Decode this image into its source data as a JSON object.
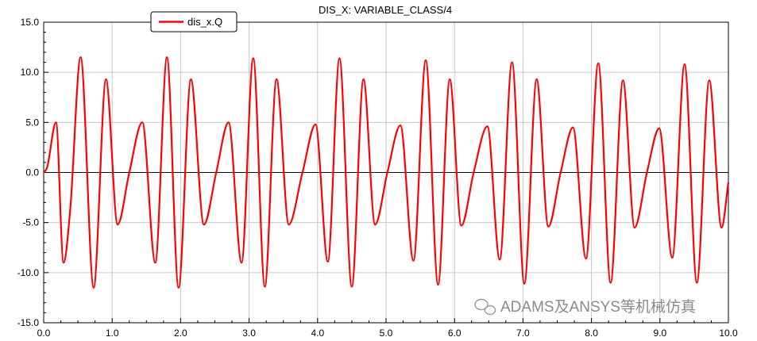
{
  "chart_data": {
    "type": "line",
    "title": "DIS_X: VARIABLE_CLASS/4",
    "xlabel": "",
    "ylabel": "",
    "xlim": [
      0.0,
      10.0
    ],
    "ylim": [
      -15.0,
      15.0
    ],
    "x_ticks": [
      "0.0",
      "1.0",
      "2.0",
      "3.0",
      "4.0",
      "5.0",
      "6.0",
      "7.0",
      "8.0",
      "9.0",
      "10.0"
    ],
    "y_ticks": [
      "15.0",
      "10.0",
      "5.0",
      "0.0",
      "-5.0",
      "-10.0",
      "-15.0"
    ],
    "grid": true,
    "legend_position": "top-left",
    "series": [
      {
        "name": "dis_x.Q",
        "color": "#ff0000",
        "x": [
          0.0,
          0.05,
          0.18,
          0.29,
          0.39,
          0.54,
          0.73,
          0.91,
          1.08,
          1.25,
          1.44,
          1.63,
          1.8,
          1.97,
          2.15,
          2.34,
          2.52,
          2.7,
          2.89,
          3.06,
          3.23,
          3.4,
          3.58,
          3.78,
          3.97,
          4.15,
          4.32,
          4.5,
          4.67,
          4.84,
          5.02,
          5.21,
          5.4,
          5.58,
          5.76,
          5.93,
          6.1,
          6.28,
          6.48,
          6.66,
          6.84,
          7.02,
          7.2,
          7.37,
          7.55,
          7.73,
          7.92,
          8.1,
          8.28,
          8.46,
          8.63,
          8.81,
          8.99,
          9.18,
          9.36,
          9.54,
          9.72,
          9.9,
          10.0
        ],
        "y": [
          0.0,
          0.5,
          5.0,
          -9.0,
          -3.5,
          11.5,
          -11.5,
          9.3,
          -5.2,
          0.0,
          5.0,
          -9.0,
          11.5,
          -11.5,
          9.3,
          -5.2,
          0.0,
          5.0,
          -9.0,
          11.4,
          -11.4,
          9.3,
          -5.2,
          0.0,
          4.8,
          -8.9,
          11.4,
          -11.4,
          9.3,
          -5.2,
          0.0,
          4.7,
          -8.8,
          11.2,
          -11.2,
          9.3,
          -5.3,
          0.0,
          4.6,
          -8.7,
          11.0,
          -11.1,
          9.3,
          -5.4,
          0.0,
          4.5,
          -8.6,
          10.9,
          -11.0,
          9.2,
          -5.5,
          0.0,
          4.4,
          -8.5,
          10.8,
          -11.0,
          9.2,
          -5.5,
          -1.0
        ]
      }
    ]
  },
  "watermark": {
    "text": "ADAMS及ANSYS等机械仿真",
    "icon": "wechat-icon"
  }
}
